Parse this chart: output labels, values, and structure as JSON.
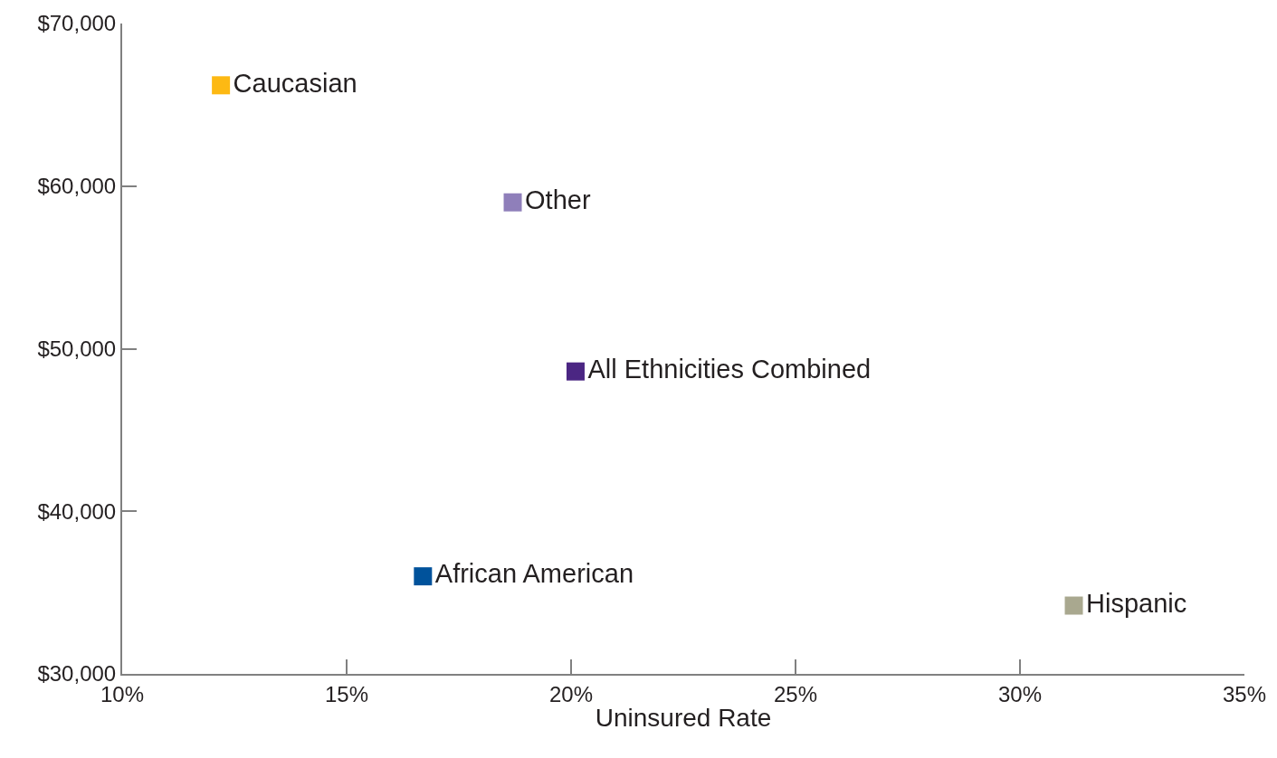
{
  "chart_data": {
    "type": "scatter",
    "xlabel": "Uninsured Rate",
    "xlim": [
      10,
      35
    ],
    "xticks": [
      {
        "value": 10,
        "label": "10%"
      },
      {
        "value": 15,
        "label": "15%"
      },
      {
        "value": 20,
        "label": "20%"
      },
      {
        "value": 25,
        "label": "25%"
      },
      {
        "value": 30,
        "label": "30%"
      },
      {
        "value": 35,
        "label": "35%"
      }
    ],
    "ylim": [
      30000,
      70000
    ],
    "yticks": [
      {
        "value": 30000,
        "label": "$30,000"
      },
      {
        "value": 40000,
        "label": "$40,000"
      },
      {
        "value": 50000,
        "label": "$50,000"
      },
      {
        "value": 60000,
        "label": "$60,000"
      },
      {
        "value": 70000,
        "label": "$70,000"
      }
    ],
    "marker": "square",
    "legend": false,
    "series": [
      {
        "name": "Caucasian",
        "color": "#fdb913",
        "x": [
          12.2
        ],
        "values": [
          66200
        ]
      },
      {
        "name": "Other",
        "color": "#8f7fba",
        "x": [
          18.7
        ],
        "values": [
          59000
        ]
      },
      {
        "name": "All Ethnicities Combined",
        "color": "#4b2683",
        "x": [
          20.1
        ],
        "values": [
          48600
        ]
      },
      {
        "name": "African American",
        "color": "#00529b",
        "x": [
          16.7
        ],
        "values": [
          36000
        ]
      },
      {
        "name": "Hispanic",
        "color": "#a9a88f",
        "x": [
          31.2
        ],
        "values": [
          34200
        ]
      }
    ]
  }
}
